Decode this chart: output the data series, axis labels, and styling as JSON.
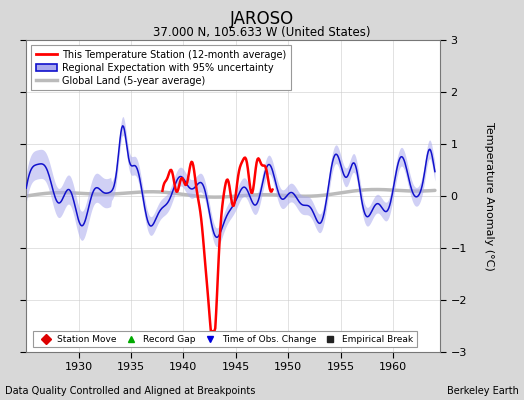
{
  "title": "JAROSO",
  "subtitle": "37.000 N, 105.633 W (United States)",
  "xlabel_bottom": "Data Quality Controlled and Aligned at Breakpoints",
  "xlabel_right": "Berkeley Earth",
  "ylabel_right": "Temperature Anomaly (°C)",
  "xlim": [
    1925,
    1964.5
  ],
  "ylim": [
    -3,
    3
  ],
  "yticks": [
    -3,
    -2,
    -1,
    0,
    1,
    2,
    3
  ],
  "xticks": [
    1930,
    1935,
    1940,
    1945,
    1950,
    1955,
    1960
  ],
  "bg_color": "#d8d8d8",
  "plot_bg_color": "#ffffff",
  "legend_items": [
    {
      "label": "This Temperature Station (12-month average)",
      "color": "#ff0000",
      "lw": 2
    },
    {
      "label": "Regional Expectation with 95% uncertainty",
      "color": "#2222cc",
      "lw": 1.5
    },
    {
      "label": "Global Land (5-year average)",
      "color": "#aaaaaa",
      "lw": 3
    }
  ],
  "marker_legend": [
    {
      "label": "Station Move",
      "color": "#dd0000",
      "marker": "D"
    },
    {
      "label": "Record Gap",
      "color": "#00aa00",
      "marker": "^"
    },
    {
      "label": "Time of Obs. Change",
      "color": "#0000dd",
      "marker": "v"
    },
    {
      "label": "Empirical Break",
      "color": "#222222",
      "marker": "s"
    }
  ]
}
